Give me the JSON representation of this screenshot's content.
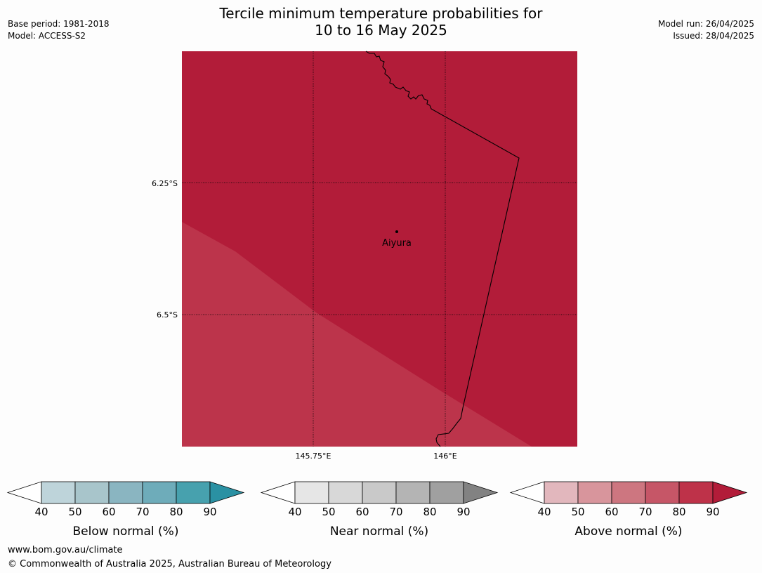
{
  "header": {
    "title_line1": "Tercile minimum temperature probabilities for",
    "title_line2": "10 to 16 May 2025",
    "base_period": "Base period: 1981-2018",
    "model": "Model: ACCESS-S2",
    "model_run": "Model run: 26/04/2025",
    "issued": "Issued: 28/04/2025"
  },
  "map": {
    "lat_labels": [
      "6.25°S",
      "6.5°S"
    ],
    "lon_labels": [
      "145.75°E",
      "146°E"
    ],
    "place": "Aiyura",
    "fill_colors": {
      "main_80_90": "#b21c39",
      "lower_70_80": "#bc344b"
    },
    "border_color": "#000000"
  },
  "legends": [
    {
      "label": "Below normal (%)",
      "ticks": [
        "40",
        "50",
        "60",
        "70",
        "80",
        "90"
      ],
      "colors": [
        "#ffffff",
        "#bed4da",
        "#a8c5cb",
        "#8ab5c1",
        "#6eacba",
        "#47a1ae",
        "#2a91a3"
      ]
    },
    {
      "label": "Near normal (%)",
      "ticks": [
        "40",
        "50",
        "60",
        "70",
        "80",
        "90"
      ],
      "colors": [
        "#ffffff",
        "#e6e6e6",
        "#d8d8d8",
        "#c9c9c9",
        "#b4b4b4",
        "#a0a0a0",
        "#828282"
      ]
    },
    {
      "label": "Above normal (%)",
      "ticks": [
        "40",
        "50",
        "60",
        "70",
        "80",
        "90"
      ],
      "colors": [
        "#ffffff",
        "#e2b7bd",
        "#d8959c",
        "#cd7680",
        "#c65667",
        "#be3249",
        "#b21c39"
      ]
    }
  ],
  "footer": {
    "url": "www.bom.gov.au/climate",
    "copyright": "© Commonwealth of Australia 2025, Australian Bureau of Meteorology"
  }
}
